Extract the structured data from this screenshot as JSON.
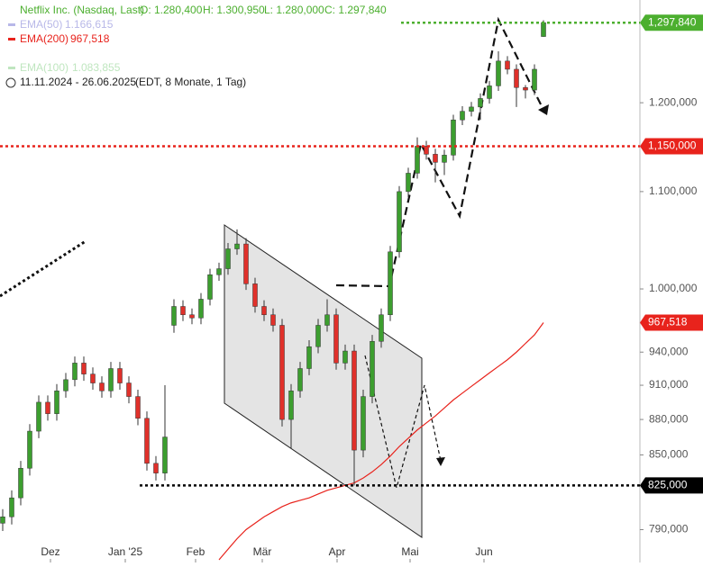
{
  "chart_data": {
    "type": "candlestick",
    "log": true,
    "title": "Netflix Inc. (Nasdaq, Last)",
    "ohlc_text": [
      "O: 1.280,400",
      "H: 1.300,950",
      "L: 1.280,000",
      "C: 1.297,840"
    ],
    "legend": [
      {
        "name": "EMA(50)",
        "label": "1.166,615",
        "color": "#b8b8e8"
      },
      {
        "name": "EMA(200)",
        "label": "967,518",
        "color": "#e8231c"
      },
      {
        "name": "EMA(100)",
        "label": "1.083,855",
        "color": "#bfe6bf"
      }
    ],
    "range": "11.11.2024 - 26.06.2025",
    "range_note": "(EDT, 8 Monate, 1 Tag)",
    "x_labels": [
      "Dez",
      "Jan '25",
      "Feb",
      "Mär",
      "Apr",
      "Mai",
      "Jun"
    ],
    "ylim": [
      765000,
      1327000
    ],
    "yticks": [
      {
        "value": 790000,
        "label": "790,000"
      },
      {
        "value": 850000,
        "label": "850,000"
      },
      {
        "value": 880000,
        "label": "880,000"
      },
      {
        "value": 910000,
        "label": "910,000"
      },
      {
        "value": 940000,
        "label": "940,000"
      },
      {
        "value": 1000000,
        "label": "1.000,000"
      },
      {
        "value": 1100000,
        "label": "1.100,000"
      },
      {
        "value": 1200000,
        "label": "1.200,000"
      }
    ],
    "up_color": "#3c9e2f",
    "down_color": "#e0302a",
    "candles": [
      [
        795000,
        806000,
        789000,
        800000
      ],
      [
        800000,
        821000,
        794000,
        815000
      ],
      [
        815000,
        845000,
        809000,
        839000
      ],
      [
        839000,
        876000,
        833000,
        870000
      ],
      [
        870000,
        901000,
        864000,
        895000
      ],
      [
        895000,
        901000,
        879000,
        885000
      ],
      [
        885000,
        911000,
        879000,
        905000
      ],
      [
        905000,
        921000,
        899000,
        915000
      ],
      [
        915000,
        936000,
        909000,
        930000
      ],
      [
        930000,
        936000,
        914000,
        920000
      ],
      [
        920000,
        926000,
        906000,
        912000
      ],
      [
        912000,
        918000,
        899000,
        905000
      ],
      [
        905000,
        931000,
        899000,
        925000
      ],
      [
        925000,
        931000,
        906000,
        912000
      ],
      [
        912000,
        918000,
        894000,
        900000
      ],
      [
        900000,
        906000,
        875000,
        881000
      ],
      [
        881000,
        887000,
        837000,
        843000
      ],
      [
        843000,
        849000,
        829000,
        835000
      ],
      [
        835000,
        910000,
        829000,
        865000
      ],
      [
        965000,
        990000,
        958000,
        983000
      ],
      [
        983000,
        989000,
        969000,
        975000
      ],
      [
        975000,
        981000,
        966000,
        972000
      ],
      [
        972000,
        996000,
        966000,
        990000
      ],
      [
        990000,
        1020000,
        984000,
        1014000
      ],
      [
        1014000,
        1026000,
        1008000,
        1020000
      ],
      [
        1020000,
        1046000,
        1014000,
        1040000
      ],
      [
        1040000,
        1060000,
        1034000,
        1045000
      ],
      [
        1045000,
        1051000,
        999000,
        1005000
      ],
      [
        1005000,
        1011000,
        977000,
        983000
      ],
      [
        983000,
        989000,
        969000,
        975000
      ],
      [
        975000,
        981000,
        959000,
        965000
      ],
      [
        965000,
        971000,
        874000,
        880000
      ],
      [
        880000,
        911000,
        855000,
        905000
      ],
      [
        905000,
        931000,
        899000,
        925000
      ],
      [
        925000,
        951000,
        919000,
        945000
      ],
      [
        945000,
        971000,
        939000,
        965000
      ],
      [
        965000,
        990000,
        959000,
        975000
      ],
      [
        975000,
        981000,
        924000,
        930000
      ],
      [
        930000,
        947000,
        924000,
        941000
      ],
      [
        941000,
        947000,
        825000,
        854000
      ],
      [
        854000,
        906000,
        848000,
        900000
      ],
      [
        900000,
        956000,
        894000,
        950000
      ],
      [
        950000,
        981000,
        944000,
        975000
      ],
      [
        975000,
        1043000,
        969000,
        1037000
      ],
      [
        1037000,
        1106000,
        1031000,
        1100000
      ],
      [
        1100000,
        1126000,
        1094000,
        1120000
      ],
      [
        1120000,
        1160000,
        1114000,
        1150000
      ],
      [
        1150000,
        1156000,
        1135000,
        1141000
      ],
      [
        1141000,
        1147000,
        1110000,
        1132000
      ],
      [
        1132000,
        1146000,
        1118000,
        1140000
      ],
      [
        1140000,
        1186000,
        1134000,
        1180000
      ],
      [
        1180000,
        1196000,
        1174000,
        1190000
      ],
      [
        1190000,
        1201000,
        1184000,
        1195000
      ],
      [
        1195000,
        1211000,
        1180000,
        1205000
      ],
      [
        1205000,
        1226000,
        1199000,
        1220000
      ],
      [
        1220000,
        1262000,
        1214000,
        1250000
      ],
      [
        1250000,
        1256000,
        1234000,
        1240000
      ],
      [
        1240000,
        1246000,
        1195000,
        1218000
      ],
      [
        1218000,
        1221000,
        1205000,
        1215000
      ],
      [
        1215000,
        1246000,
        1209000,
        1240000
      ],
      [
        1280400,
        1300950,
        1280000,
        1297840
      ]
    ],
    "series": [
      {
        "name": "EMA(200)",
        "color": "#e8231c",
        "values": [
          null,
          null,
          null,
          null,
          null,
          null,
          null,
          null,
          null,
          null,
          null,
          null,
          null,
          null,
          null,
          null,
          null,
          null,
          null,
          null,
          null,
          null,
          null,
          null,
          767000,
          775000,
          783000,
          790000,
          795000,
          800000,
          804000,
          808000,
          811000,
          813000,
          815000,
          818000,
          821000,
          823000,
          825000,
          827000,
          831000,
          836000,
          842000,
          849000,
          857000,
          864000,
          871000,
          877000,
          883000,
          890000,
          897000,
          903000,
          909000,
          915000,
          921000,
          927000,
          933000,
          940000,
          948000,
          956000,
          967518
        ]
      }
    ],
    "levels": [
      {
        "value": 1297840,
        "label": "1,297,840",
        "color": "#4caf2f",
        "from": 445
      },
      {
        "value": 1150000,
        "label": "1,150,000",
        "color": "#e8231c",
        "from": 0
      },
      {
        "value": 967518,
        "label": "967,518",
        "color": "#e8231c"
      },
      {
        "value": 825000,
        "label": "825,000",
        "color": "#000000",
        "from": 155
      }
    ]
  }
}
